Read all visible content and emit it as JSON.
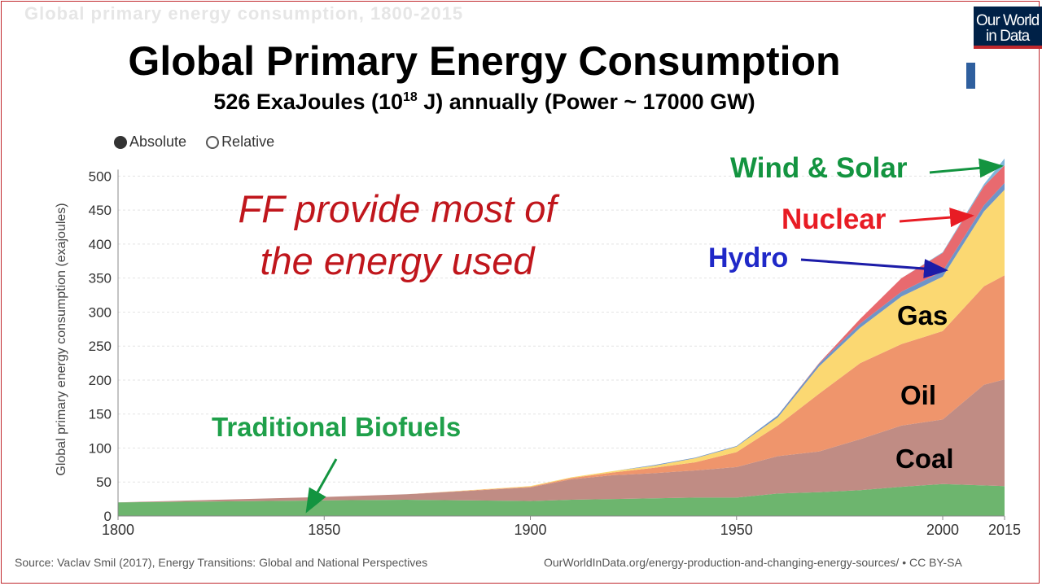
{
  "slide": {
    "ghost_heading": "Global primary energy consumption, 1800-2015",
    "title": "Global Primary Energy Consumption",
    "subtitle_prefix": "526 ExaJoules (10",
    "subtitle_exp": "18",
    "subtitle_suffix": " J) annually (Power ~ 17000 GW)",
    "logo_line1": "Our World",
    "logo_line2": "in Data",
    "legend_absolute": "Absolute",
    "legend_relative": "Relative",
    "source_left": "Source: Vaclav Smil (2017), Energy Transitions: Global and National Perspectives",
    "source_right": "OurWorldInData.org/energy-production-and-changing-energy-sources/ • CC BY-SA"
  },
  "chart_data": {
    "type": "area",
    "stacked": true,
    "title": "Global Primary Energy Consumption",
    "ylabel": "Global primary energy consumption (exajoules)",
    "xlabel": "",
    "xlim": [
      1800,
      2015
    ],
    "ylim": [
      0,
      520
    ],
    "x_ticks": [
      1800,
      1850,
      1900,
      1950,
      2000,
      2015
    ],
    "y_ticks": [
      0,
      50,
      100,
      150,
      200,
      250,
      300,
      350,
      400,
      450,
      500
    ],
    "grid": true,
    "x": [
      1800,
      1850,
      1870,
      1900,
      1910,
      1920,
      1930,
      1940,
      1950,
      1960,
      1970,
      1980,
      1990,
      2000,
      2010,
      2015
    ],
    "series": [
      {
        "name": "Traditional Biofuels",
        "color": "#6db56e",
        "values": [
          20,
          23,
          24,
          22,
          24,
          25,
          26,
          27,
          27,
          33,
          35,
          38,
          43,
          47,
          45,
          44
        ]
      },
      {
        "name": "Coal",
        "color": "#c08c84",
        "values": [
          0,
          5,
          8,
          20,
          30,
          35,
          37,
          40,
          45,
          55,
          60,
          75,
          90,
          95,
          148,
          157
        ]
      },
      {
        "name": "Oil",
        "color": "#ef956c",
        "values": [
          0,
          0,
          0,
          1,
          2,
          4,
          8,
          12,
          22,
          45,
          85,
          112,
          120,
          130,
          145,
          153
        ]
      },
      {
        "name": "Gas",
        "color": "#fbd872",
        "values": [
          0,
          0,
          0,
          1,
          1,
          2,
          3,
          6,
          8,
          12,
          40,
          52,
          70,
          80,
          110,
          126
        ]
      },
      {
        "name": "Hydro",
        "color": "#6f94c8",
        "values": [
          0,
          0,
          0,
          0,
          0,
          0,
          1,
          1,
          1,
          3,
          4,
          6,
          7,
          8,
          9,
          10
        ]
      },
      {
        "name": "Nuclear",
        "color": "#e86a6f",
        "values": [
          0,
          0,
          0,
          0,
          0,
          0,
          0,
          0,
          0,
          0,
          1,
          7,
          20,
          27,
          28,
          26
        ]
      },
      {
        "name": "Wind & Solar",
        "color": "#7fb6d9",
        "values": [
          0,
          0,
          0,
          0,
          0,
          0,
          0,
          0,
          0,
          0,
          0,
          0,
          0,
          1,
          3,
          10
        ]
      }
    ],
    "total_label": "526 ExaJoules",
    "annotations": {
      "main_text_line1": "FF provide most of",
      "main_text_line2": "the energy used",
      "wind_solar": "Wind & Solar",
      "nuclear": "Nuclear",
      "hydro": "Hydro",
      "gas": "Gas",
      "oil": "Oil",
      "coal": "Coal",
      "biofuels": "Traditional Biofuels"
    },
    "colors": {
      "annotation_red": "#c0161c",
      "wind_solar_label": "#139440",
      "nuclear_label": "#e81c24",
      "hydro_label": "#1f28c8",
      "biofuels_label": "#1fa04a",
      "wind_arrow": "#139440",
      "nuclear_arrow": "#e81c24",
      "hydro_arrow": "#1c1ca8",
      "biofuels_arrow": "#139440"
    }
  }
}
